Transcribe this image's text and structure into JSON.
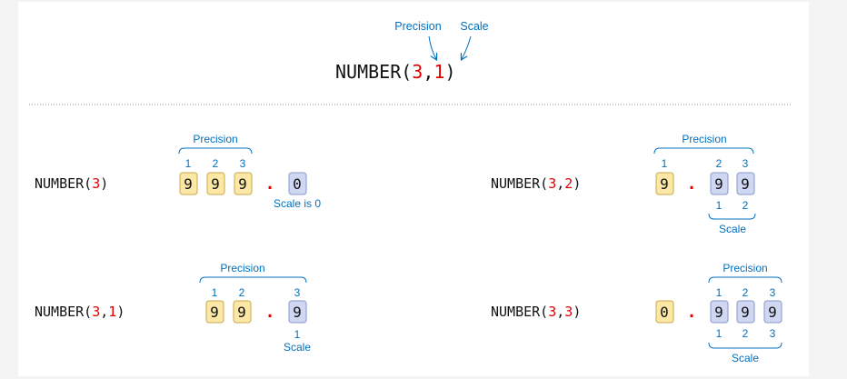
{
  "colors": {
    "text": "#111111",
    "accent_red": "#e00000",
    "label_blue": "#0070c0",
    "precision_digit_fill": "#fbe7a6",
    "precision_digit_stroke": "#c9a94a",
    "scale_digit_fill": "#cfd7f3",
    "scale_digit_stroke": "#8a97c9",
    "divider": "#9a9a9a"
  },
  "header": {
    "prefix": "NUMBER(",
    "precision": "3",
    "comma": ",",
    "scale": "1",
    "suffix": ")",
    "precision_label": "Precision",
    "scale_label": "Scale"
  },
  "examples": [
    {
      "prefix": "NUMBER(",
      "args": [
        "3"
      ],
      "separators": [],
      "suffix": ")",
      "precision_label": "Precision",
      "precision_positions": [
        "1",
        "2",
        "3"
      ],
      "integer_digits": [
        "9",
        "9",
        "9"
      ],
      "point": ".",
      "fraction_digits": [
        "0"
      ],
      "scale_note": "Scale is 0"
    },
    {
      "prefix": "NUMBER(",
      "args": [
        "3",
        "2"
      ],
      "separators": [
        ","
      ],
      "suffix": ")",
      "precision_label": "Precision",
      "precision_positions": [
        "1",
        "2",
        "3"
      ],
      "integer_digits": [
        "9"
      ],
      "point": ".",
      "fraction_digits": [
        "9",
        "9"
      ],
      "scale_positions": [
        "1",
        "2"
      ],
      "scale_label": "Scale"
    },
    {
      "prefix": "NUMBER(",
      "args": [
        "3",
        "1"
      ],
      "separators": [
        ","
      ],
      "suffix": ")",
      "precision_label": "Precision",
      "precision_positions": [
        "1",
        "2",
        "3"
      ],
      "integer_digits": [
        "9",
        "9"
      ],
      "point": ".",
      "fraction_digits": [
        "9"
      ],
      "scale_positions": [
        "1"
      ],
      "scale_label": "Scale"
    },
    {
      "prefix": "NUMBER(",
      "args": [
        "3",
        "3"
      ],
      "separators": [
        ","
      ],
      "suffix": ")",
      "precision_label": "Precision",
      "precision_positions": [
        "1",
        "2",
        "3"
      ],
      "integer_digits": [
        "0"
      ],
      "point": ".",
      "fraction_digits": [
        "9",
        "9",
        "9"
      ],
      "scale_positions": [
        "1",
        "2",
        "3"
      ],
      "scale_label": "Scale"
    }
  ]
}
